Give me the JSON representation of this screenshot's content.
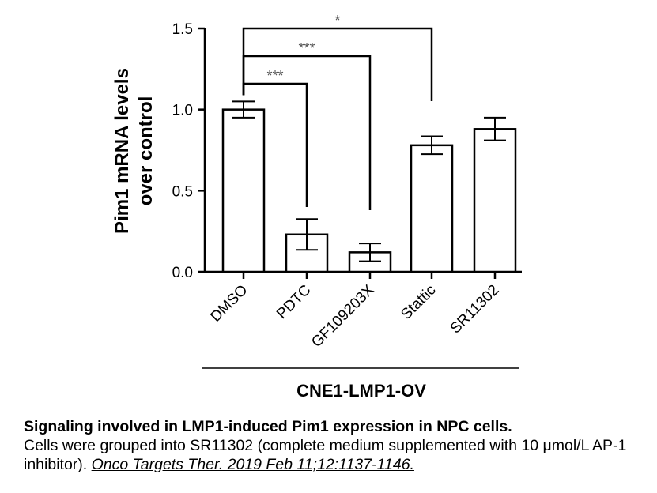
{
  "chart_data": {
    "type": "bar",
    "categories": [
      "DMSO",
      "PDTC",
      "GF109203X",
      "Stattic",
      "SR11302"
    ],
    "values": [
      1.0,
      0.23,
      0.12,
      0.78,
      0.88
    ],
    "errors": [
      0.05,
      0.095,
      0.055,
      0.055,
      0.07
    ],
    "ylabel_line1": "Pim1 mRNA levels",
    "ylabel_line2": "over control",
    "ylim": [
      0,
      1.5
    ],
    "yticks": [
      "0.0",
      "0.5",
      "1.0",
      "1.5"
    ],
    "group_label": "CNE1-LMP1-OV",
    "significance": [
      {
        "from": "DMSO",
        "to": "PDTC",
        "label": "***"
      },
      {
        "from": "DMSO",
        "to": "GF109203X",
        "label": "***"
      },
      {
        "from": "DMSO",
        "to": "Stattic",
        "label": "*"
      }
    ],
    "grid": false,
    "bar_fill": "#ffffff",
    "stroke_color": "#000000"
  },
  "caption": {
    "title": "Signaling involved in LMP1-induced Pim1 expression in NPC cells.",
    "body": "Cells were grouped into SR11302 (complete medium supplemented with 10 μmol/L AP-1 inhibitor). ",
    "citation": "Onco Targets Ther. 2019 Feb 11;12:1137-1146."
  }
}
